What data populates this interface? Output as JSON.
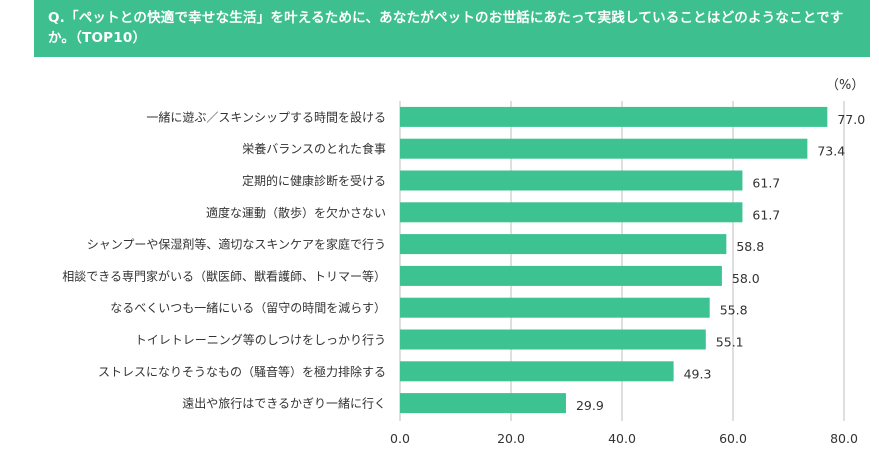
{
  "header": {
    "question": "Q.「ペットとの快適で幸せな生活」を叶えるために、あなたがペットのお世話にあたって実践していることはどのようなことですか。（TOP10）"
  },
  "colors": {
    "accent": "#3dbf8f",
    "bar": "#3cc391",
    "axis": "#bfbfbf",
    "text": "#333333"
  },
  "chart_data": {
    "type": "bar",
    "orientation": "horizontal",
    "unit": "（%）",
    "categories": [
      "一緒に遊ぶ／スキンシップする時間を設ける",
      "栄養バランスのとれた食事",
      "定期的に健康診断を受ける",
      "適度な運動（散歩）を欠かさない",
      "シャンプーや保湿剤等、適切なスキンケアを家庭で行う",
      "相談できる専門家がいる（獣医師、獣看護師、トリマー等）",
      "なるべくいつも一緒にいる（留守の時間を減らす）",
      "トイレトレーニング等のしつけをしっかり行う",
      "ストレスになりそうなもの（騒音等）を極力排除する",
      "遠出や旅行はできるかぎり一緒に行く"
    ],
    "values": [
      77.0,
      73.4,
      61.7,
      61.7,
      58.8,
      58.0,
      55.8,
      55.1,
      49.3,
      29.9
    ],
    "value_labels": [
      "77.0",
      "73.4",
      "61.7",
      "61.7",
      "58.8",
      "58.0",
      "55.8",
      "55.1",
      "49.3",
      "29.9"
    ],
    "xticks": [
      0,
      20,
      40,
      60,
      80
    ],
    "xtick_labels": [
      "0.0",
      "20.0",
      "40.0",
      "60.0",
      "80.0"
    ],
    "xlim": [
      0,
      80
    ],
    "grid": true
  }
}
